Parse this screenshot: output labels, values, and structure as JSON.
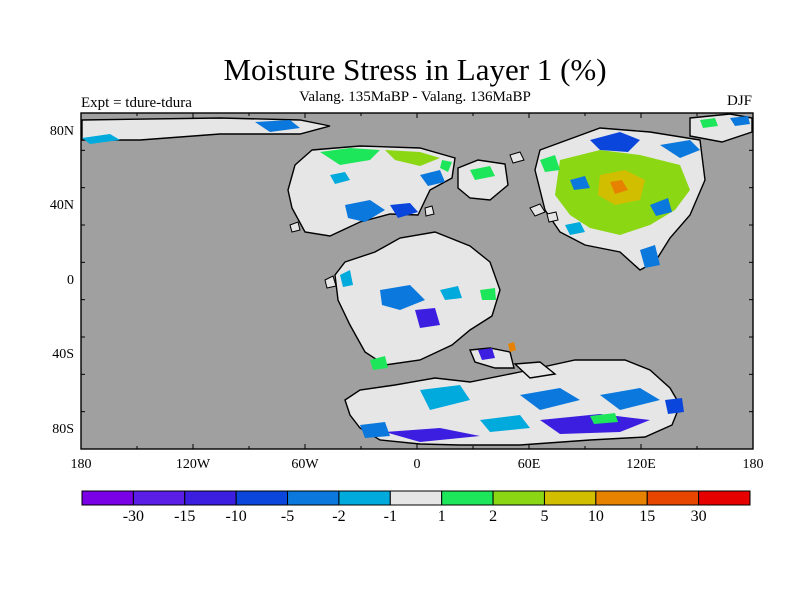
{
  "header": {
    "title": "Moisture Stress in Layer 1 (%)",
    "subtitle": "Valang.  135MaBP - Valang.  136MaBP",
    "left_label": "Expt = tdure-tdura",
    "right_label": "DJF"
  },
  "map": {
    "projection": "cylindrical-equidistant",
    "ocean_color": "#a0a0a0",
    "land_color": "#e6e6e6",
    "lat_labels": [
      "80N",
      "40N",
      "0",
      "40S",
      "80S"
    ],
    "lon_labels": [
      "180",
      "120W",
      "60W",
      "0",
      "60E",
      "120E",
      "180"
    ]
  },
  "colorbar": {
    "colors": [
      "#7a00e6",
      "#5a1ee6",
      "#3c1ee0",
      "#0a46dc",
      "#0a78dc",
      "#00aadc",
      "#e6e6e6",
      "#1ee65a",
      "#8cd714",
      "#d2be00",
      "#e68200",
      "#e64600",
      "#e60000"
    ],
    "labels": [
      "-30",
      "-15",
      "-10",
      "-5",
      "-2",
      "-1",
      "1",
      "2",
      "5",
      "10",
      "15",
      "30"
    ]
  }
}
